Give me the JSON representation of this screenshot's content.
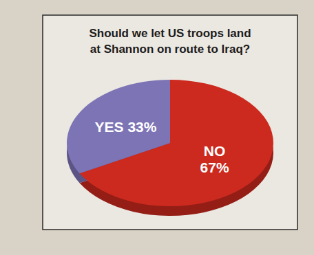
{
  "chart_data": {
    "type": "pie",
    "title": "Should we let US troops land at Shannon on route to Iraq?",
    "categories": [
      "NO",
      "YES"
    ],
    "values": [
      67,
      33
    ],
    "value_labels": [
      "67%",
      "33%"
    ],
    "colors": [
      "#cc2a1e",
      "#7d74b6"
    ],
    "data_labels": true
  }
}
